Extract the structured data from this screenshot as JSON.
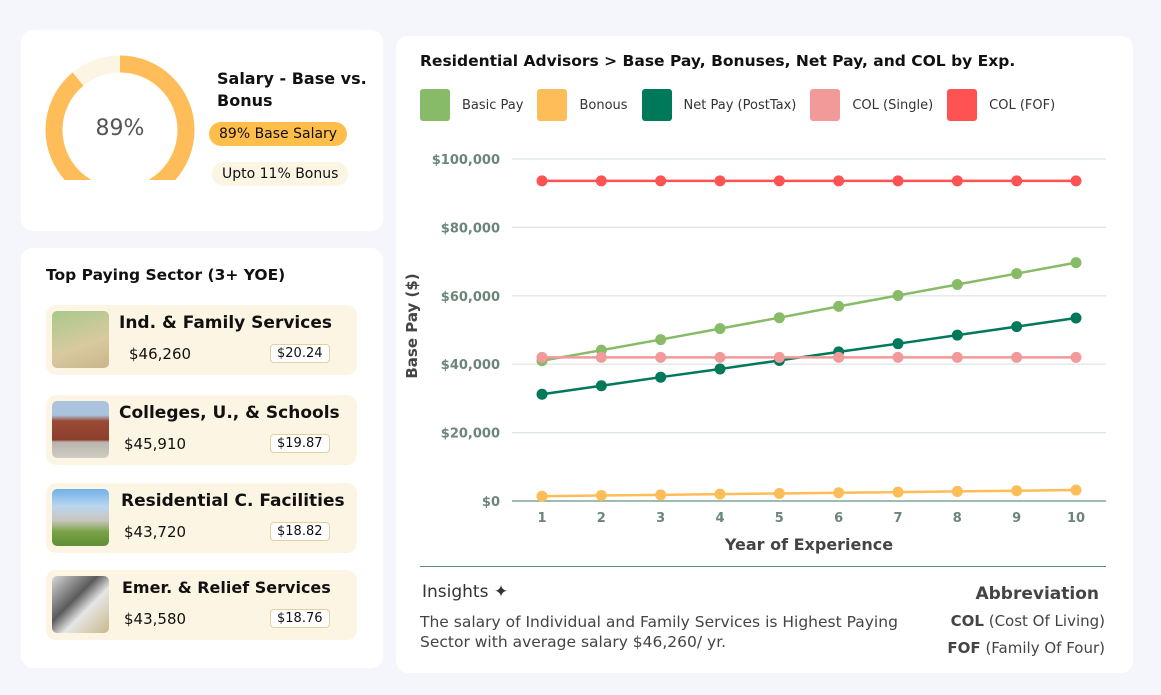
{
  "summary": {
    "title": "Salary - Base vs. Bonus",
    "donut_value": "89%",
    "base_fraction": 0.89,
    "base_label": "89% Base Salary",
    "bonus_label": "Upto 11% Bonus",
    "colors": {
      "base": "#ffbd59",
      "bonus": "#fdf5e4"
    }
  },
  "sectors": {
    "title": "Top Paying Sector (3+ YOE)",
    "items": [
      {
        "name": "Ind. & Family Services",
        "salary": "$46,260",
        "hourly": "$20.24",
        "image": "family-services-photo"
      },
      {
        "name": "Colleges, U., & Schools",
        "salary": "$45,910",
        "hourly": "$19.87",
        "image": "college-building-photo"
      },
      {
        "name": "Residential C. Facilities",
        "salary": "$43,720",
        "hourly": "$18.82",
        "image": "residential-facility-photo"
      },
      {
        "name": "Emer. & Relief Services",
        "salary": "$43,580",
        "hourly": "$18.76",
        "image": "relief-office-photo"
      }
    ]
  },
  "chart_data": {
    "type": "line",
    "title": "Residential Advisors > Base Pay, Bonuses, Net Pay, and COL by Exp.",
    "xlabel": "Year of Experience",
    "ylabel": "Base Pay ($)",
    "x": [
      1,
      2,
      3,
      4,
      5,
      6,
      7,
      8,
      9,
      10
    ],
    "ylim": [
      0,
      100000
    ],
    "yticks": [
      "$0",
      "$20,000",
      "$40,000",
      "$60,000",
      "$80,000",
      "$100,000"
    ],
    "ytick_values": [
      0,
      20000,
      40000,
      60000,
      80000,
      100000
    ],
    "grid": true,
    "legend_placement": "top",
    "series": [
      {
        "name": "Basic Pay",
        "color": "#88bb67",
        "values": [
          41000,
          44100,
          47200,
          50400,
          53600,
          56900,
          60100,
          63300,
          66500,
          69700
        ]
      },
      {
        "name": "Bonous",
        "color": "#ffbd59",
        "values": [
          1400,
          1600,
          1800,
          2000,
          2200,
          2400,
          2600,
          2800,
          3000,
          3200
        ]
      },
      {
        "name": "Net Pay (PostTax)",
        "color": "#00785a",
        "values": [
          31200,
          33700,
          36200,
          38600,
          41100,
          43600,
          46000,
          48500,
          51000,
          53500
        ]
      },
      {
        "name": "COL (Single)",
        "color": "#f29a9a",
        "values": [
          42000,
          42000,
          42000,
          42000,
          42000,
          42000,
          42000,
          42000,
          42000,
          42000
        ]
      },
      {
        "name": "COL (FOF)",
        "color": "#ff5252",
        "values": [
          93600,
          93600,
          93600,
          93600,
          93600,
          93600,
          93600,
          93600,
          93600,
          93600
        ]
      }
    ]
  },
  "insights": {
    "title": "Insights",
    "icon": "sparkle-icon",
    "text": "The salary of Individual and Family Services is Highest Paying Sector with average salary $46,260/ yr."
  },
  "abbreviation": {
    "title": "Abbreviation",
    "items": [
      {
        "abbr": "COL",
        "full": "(Cost Of Living)"
      },
      {
        "abbr": "FOF",
        "full": "(Family Of Four)"
      }
    ]
  }
}
